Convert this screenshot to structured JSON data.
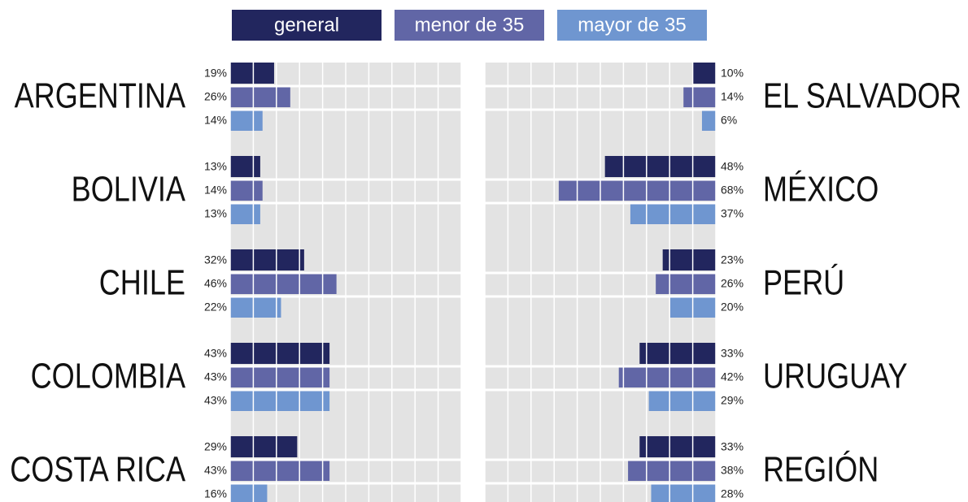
{
  "chart_data": {
    "type": "bar",
    "categories": [
      "ARGENTINA",
      "BOLIVIA",
      "CHILE",
      "COLOMBIA",
      "COSTA RICA",
      "EL SALVADOR",
      "MÉXICO",
      "PERÚ",
      "URUGUAY",
      "REGIÓN"
    ],
    "series": [
      {
        "name": "general",
        "color": "#22265e",
        "values": [
          19,
          13,
          32,
          43,
          29,
          10,
          48,
          23,
          33,
          33
        ],
        "value_labels": [
          "19%",
          "13%",
          "32%",
          "43%",
          "29%",
          "10%",
          "48%",
          "23%",
          "33%",
          "33%"
        ]
      },
      {
        "name": "menor de 35",
        "color": "#6166a6",
        "values": [
          26,
          14,
          46,
          43,
          43,
          14,
          68,
          26,
          42,
          38
        ],
        "value_labels": [
          "26%",
          "14%",
          "46%",
          "43%",
          "43%",
          "14%",
          "68%",
          "26%",
          "42%",
          "38%"
        ]
      },
      {
        "name": "mayor de 35",
        "color": "#6f96d0",
        "values": [
          14,
          13,
          22,
          43,
          16,
          6,
          37,
          20,
          29,
          28
        ],
        "value_labels": [
          "14%",
          "13%",
          "22%",
          "43%",
          "16%",
          "6%",
          "37%",
          "20%",
          "29%",
          "28%"
        ]
      }
    ],
    "xlim": [
      0,
      100
    ],
    "xticks": [
      0,
      10,
      20,
      30,
      40,
      50,
      60,
      70,
      80,
      90,
      100
    ],
    "grid": true
  }
}
